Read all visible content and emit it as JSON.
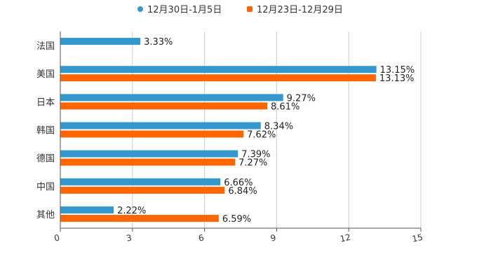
{
  "chart_data": {
    "type": "bar",
    "orientation": "horizontal",
    "title": "",
    "xlabel": "",
    "ylabel": "",
    "xlim": [
      0,
      15
    ],
    "xticks": [
      0,
      3,
      6,
      9,
      12,
      15
    ],
    "grid": true,
    "legend_position": "top-center",
    "categories": [
      "法国",
      "美国",
      "日本",
      "韩国",
      "德国",
      "中国",
      "其他"
    ],
    "series": [
      {
        "name": "12月30日-1月5日",
        "color": "#3399cc",
        "values": [
          3.33,
          13.15,
          9.27,
          8.34,
          7.39,
          6.66,
          2.22
        ],
        "labels": [
          "3.33%",
          "13.15%",
          "9.27%",
          "8.34%",
          "7.39%",
          "6.66%",
          "2.22%"
        ]
      },
      {
        "name": "12月23日-12月29日",
        "color": "#ff6600",
        "values": [
          null,
          13.13,
          8.61,
          7.62,
          7.27,
          6.84,
          6.59
        ],
        "labels": [
          null,
          "13.13%",
          "8.61%",
          "7.62%",
          "7.27%",
          "6.84%",
          "6.59%"
        ]
      }
    ]
  }
}
